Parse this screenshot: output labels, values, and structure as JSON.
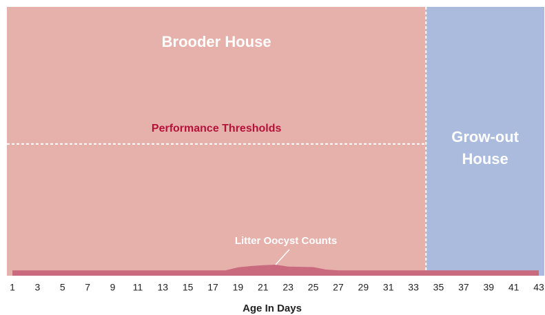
{
  "chart_data": {
    "type": "area",
    "x": [
      1,
      2,
      3,
      4,
      5,
      6,
      7,
      8,
      9,
      10,
      11,
      12,
      13,
      14,
      15,
      16,
      17,
      18,
      19,
      20,
      21,
      22,
      23,
      24,
      25,
      26,
      27,
      28,
      29,
      30,
      31,
      32,
      33,
      34,
      35,
      36,
      37,
      38,
      39,
      40,
      41,
      42,
      43
    ],
    "series": [
      {
        "name": "Litter Oocyst Counts",
        "color": "#c96a7e",
        "values": [
          2,
          2,
          2,
          2,
          2,
          2,
          2,
          2,
          2,
          2,
          2,
          2,
          2,
          2,
          2,
          2,
          2,
          2,
          3.1,
          3.6,
          3.9,
          4.1,
          3.4,
          3.3,
          3.2,
          2.3,
          2,
          2,
          2,
          2,
          2,
          2,
          2,
          2,
          2,
          2,
          2,
          2,
          2,
          2,
          2,
          2,
          2
        ]
      }
    ],
    "xlim": [
      1,
      43
    ],
    "xticks": [
      1,
      3,
      5,
      7,
      9,
      11,
      13,
      15,
      17,
      19,
      21,
      23,
      25,
      27,
      29,
      31,
      33,
      35,
      37,
      39,
      41,
      43
    ],
    "ylim": [
      0,
      100
    ],
    "x_label": "Age In Days",
    "regions": [
      {
        "label": [
          "Brooder House"
        ],
        "color": "#e6b0ab",
        "from": 1,
        "to": 34
      },
      {
        "label": [
          "Grow-out",
          "House"
        ],
        "color": "#aabbdd",
        "from": 34,
        "to": 43
      }
    ],
    "threshold": {
      "label": "Performance Thresholds",
      "value": 49,
      "color": "#b5123a"
    }
  }
}
